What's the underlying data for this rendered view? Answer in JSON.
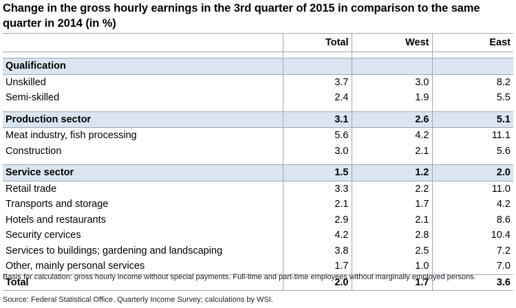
{
  "title": "Change in the gross hourly earnings in the 3rd quarter of 2015 in comparison to the same quarter in 2014 (in %)",
  "columns": [
    "Total",
    "West",
    "East"
  ],
  "sections": [
    {
      "label": "Qualification",
      "values": [
        "",
        "",
        ""
      ],
      "rows": [
        {
          "label": "Unskilled",
          "values": [
            "3.7",
            "3.0",
            "8.2"
          ]
        },
        {
          "label": "Semi-skilled",
          "values": [
            "2.4",
            "1.9",
            "5.5"
          ]
        }
      ]
    },
    {
      "label": "Production sector",
      "values": [
        "3.1",
        "2.6",
        "5.1"
      ],
      "rows": [
        {
          "label": "Meat industry, fish processing",
          "values": [
            "5.6",
            "4.2",
            "11.1"
          ]
        },
        {
          "label": "Construction",
          "values": [
            "3.0",
            "2.1",
            "5.6"
          ]
        }
      ]
    },
    {
      "label": "Service sector",
      "values": [
        "1.5",
        "1.2",
        "2.0"
      ],
      "rows": [
        {
          "label": "Retail trade",
          "values": [
            "3.3",
            "2.2",
            "11.0"
          ]
        },
        {
          "label": "Transports and storage",
          "values": [
            "2.1",
            "1.7",
            "4.2"
          ]
        },
        {
          "label": "Hotels and restaurants",
          "values": [
            "2.9",
            "2.1",
            "8.6"
          ]
        },
        {
          "label": "Security cervices",
          "values": [
            "4.2",
            "2.8",
            "10.4"
          ]
        },
        {
          "label": "Services to buildings; gardening and landscaping",
          "values": [
            "3.8",
            "2.5",
            "7.2"
          ]
        },
        {
          "label": "Other, mainly personal services",
          "values": [
            "1.7",
            "1.0",
            "7.0"
          ]
        }
      ]
    }
  ],
  "total": {
    "label": "Total",
    "values": [
      "2.0",
      "1.7",
      "3.6"
    ]
  },
  "note": "Basis for calculation: gross hourly income without special payments. Full-time and part-time employees without marginally employed persons.",
  "source": "Source: Federal Statistical Office. Quarterly Income Survey; calculations by WSI.",
  "colors": {
    "section_fill": "#dbe5f1",
    "rule": "#9aa7b8"
  }
}
